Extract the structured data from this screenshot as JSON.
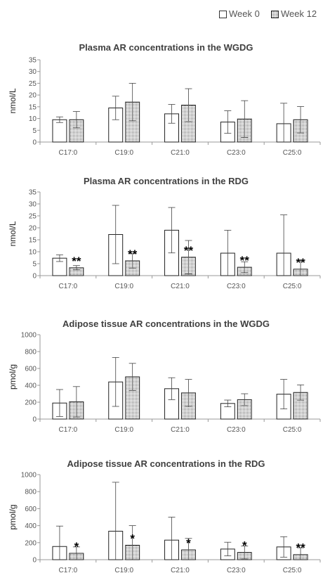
{
  "legend": {
    "week0": "Week 0",
    "week12": "Week 12"
  },
  "chart_data": [
    {
      "type": "bar",
      "title": "Plasma AR concentrations in the WGDG",
      "ylabel": "nmol/L",
      "ylim": [
        0,
        35
      ],
      "yticks": [
        0,
        5,
        10,
        15,
        20,
        25,
        30,
        35
      ],
      "categories": [
        "C17:0",
        "C19:0",
        "C21:0",
        "C23:0",
        "C25:0"
      ],
      "series": [
        {
          "name": "Week 0",
          "values": [
            9.5,
            14.5,
            12.0,
            8.5,
            7.8
          ],
          "errors": [
            1.2,
            5.0,
            4.0,
            4.8,
            8.7
          ]
        },
        {
          "name": "Week 12",
          "values": [
            9.5,
            17.0,
            15.7,
            9.8,
            9.5
          ],
          "errors": [
            3.5,
            8.0,
            7.0,
            7.8,
            5.6
          ]
        }
      ],
      "annotations": [
        "",
        "",
        "",
        "",
        ""
      ]
    },
    {
      "type": "bar",
      "title": "Plasma AR concentrations in the RDG",
      "ylabel": "nmol/L",
      "ylim": [
        0,
        35
      ],
      "yticks": [
        0,
        5,
        10,
        15,
        20,
        25,
        30,
        35
      ],
      "categories": [
        "C17:0",
        "C19:0",
        "C21:0",
        "C23:0",
        "C25:0"
      ],
      "series": [
        {
          "name": "Week 0",
          "values": [
            7.3,
            17.2,
            19.0,
            9.4,
            9.4
          ],
          "errors": [
            1.4,
            12.2,
            9.5,
            9.6,
            16.0
          ]
        },
        {
          "name": "Week 12",
          "values": [
            3.3,
            6.2,
            7.7,
            3.5,
            2.7
          ],
          "errors": [
            0.9,
            3.0,
            7.0,
            2.3,
            3.7
          ]
        }
      ],
      "annotations": [
        "**",
        "**",
        "**",
        "**",
        "**"
      ]
    },
    {
      "type": "bar",
      "title": "Adipose tissue AR concentrations in the WGDG",
      "ylabel": "pmol/g",
      "ylim": [
        0,
        1000
      ],
      "yticks": [
        0,
        200,
        400,
        600,
        800,
        1000
      ],
      "categories": [
        "C17:0",
        "C19:0",
        "C21:0",
        "C23:0",
        "C25:0"
      ],
      "series": [
        {
          "name": "Week 0",
          "values": [
            190,
            440,
            360,
            185,
            295
          ],
          "errors": [
            160,
            290,
            130,
            40,
            175
          ]
        },
        {
          "name": "Week 12",
          "values": [
            205,
            500,
            310,
            230,
            315
          ],
          "errors": [
            180,
            160,
            160,
            70,
            90
          ]
        }
      ],
      "annotations": [
        "",
        "",
        "",
        "",
        ""
      ]
    },
    {
      "type": "bar",
      "title": "Adipose tissue AR concentrations in the RDG",
      "ylabel": "pmol/g",
      "ylim": [
        0,
        1000
      ],
      "yticks": [
        0,
        200,
        400,
        600,
        800,
        1000
      ],
      "categories": [
        "C17:0",
        "C19:0",
        "C21:0",
        "C23:0",
        "C25:0"
      ],
      "series": [
        {
          "name": "Week 0",
          "values": [
            155,
            335,
            230,
            125,
            150
          ],
          "errors": [
            240,
            575,
            270,
            80,
            120
          ]
        },
        {
          "name": "Week 12",
          "values": [
            75,
            170,
            115,
            85,
            60
          ],
          "errors": [
            75,
            230,
            135,
            75,
            80
          ]
        }
      ],
      "annotations": [
        "*",
        "*",
        "*",
        "*",
        "**"
      ]
    }
  ]
}
